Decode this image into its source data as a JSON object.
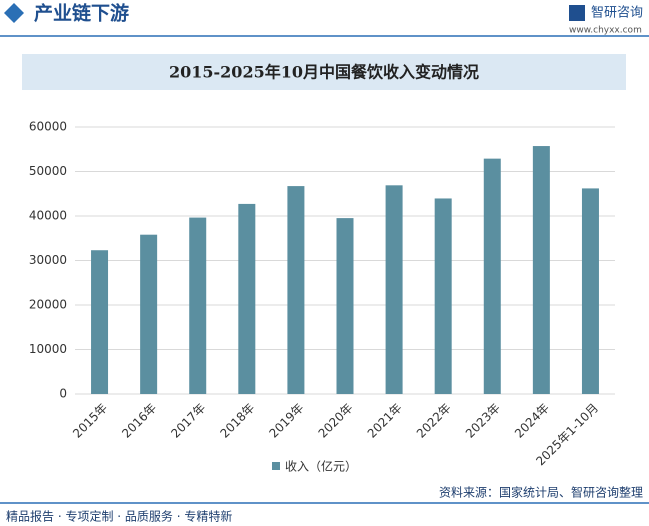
{
  "header": {
    "title": "产业链下游",
    "brand": "智研咨询",
    "url": "www.chyxx.com"
  },
  "chart_data": {
    "type": "bar",
    "title": "2015-2025年10月中国餐饮收入变动情况",
    "categories": [
      "2015年",
      "2016年",
      "2017年",
      "2018年",
      "2019年",
      "2020年",
      "2021年",
      "2022年",
      "2023年",
      "2024年",
      "2025年1-10月"
    ],
    "series": [
      {
        "name": "收入（亿元）",
        "color": "#5b8fa0",
        "values": [
          32310,
          35799,
          39644,
          42716,
          46721,
          39527,
          46895,
          43941,
          52890,
          55718,
          46200
        ]
      }
    ],
    "ylim": [
      0,
      60000
    ],
    "yticks": [
      0,
      10000,
      20000,
      30000,
      40000,
      50000,
      60000
    ],
    "grid": true,
    "legend": "bottom"
  },
  "footer": {
    "left": "精品报告 · 专项定制 · 品质服务 · 专精特新",
    "source": "资料来源：国家统计局、智研咨询整理"
  }
}
